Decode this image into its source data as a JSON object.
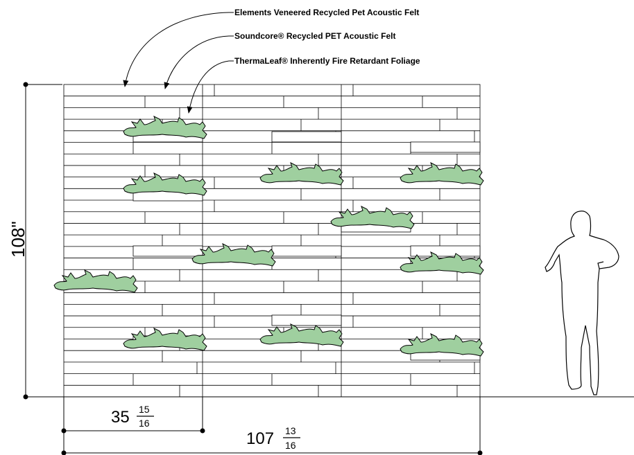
{
  "callouts": {
    "elements_felt": "Elements Veneered Recycled Pet Acoustic Felt",
    "soundcore_felt": "Soundcore® Recycled PET Acoustic Felt",
    "thermaleaf_foliage": "ThermaLeaf® Inherently Fire Retardant Foliage"
  },
  "dimensions": {
    "height": {
      "value": "108\""
    },
    "panel_width": {
      "whole": "35",
      "numerator": "15",
      "denominator": "16"
    },
    "total_width": {
      "whole": "107",
      "numerator": "13",
      "denominator": "16"
    }
  },
  "colors": {
    "foliage_fill": "#9fcf9f",
    "line": "#000000"
  }
}
